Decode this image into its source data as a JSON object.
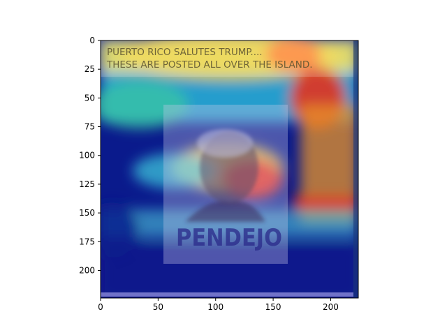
{
  "chart_data": {
    "type": "heatmap",
    "xlim": [
      0,
      224
    ],
    "ylim": [
      224,
      0
    ],
    "x_ticks": [
      0,
      50,
      100,
      150,
      200
    ],
    "y_ticks": [
      0,
      25,
      50,
      75,
      100,
      125,
      150,
      175,
      200
    ],
    "colormap": "jet",
    "grid": false,
    "image_text": {
      "line1": "PUERTO RICO SALUTES TRUMP....",
      "line2": "THESE ARE POSTED ALL OVER THE ISLAND.",
      "poster": "PENDEJO"
    }
  }
}
